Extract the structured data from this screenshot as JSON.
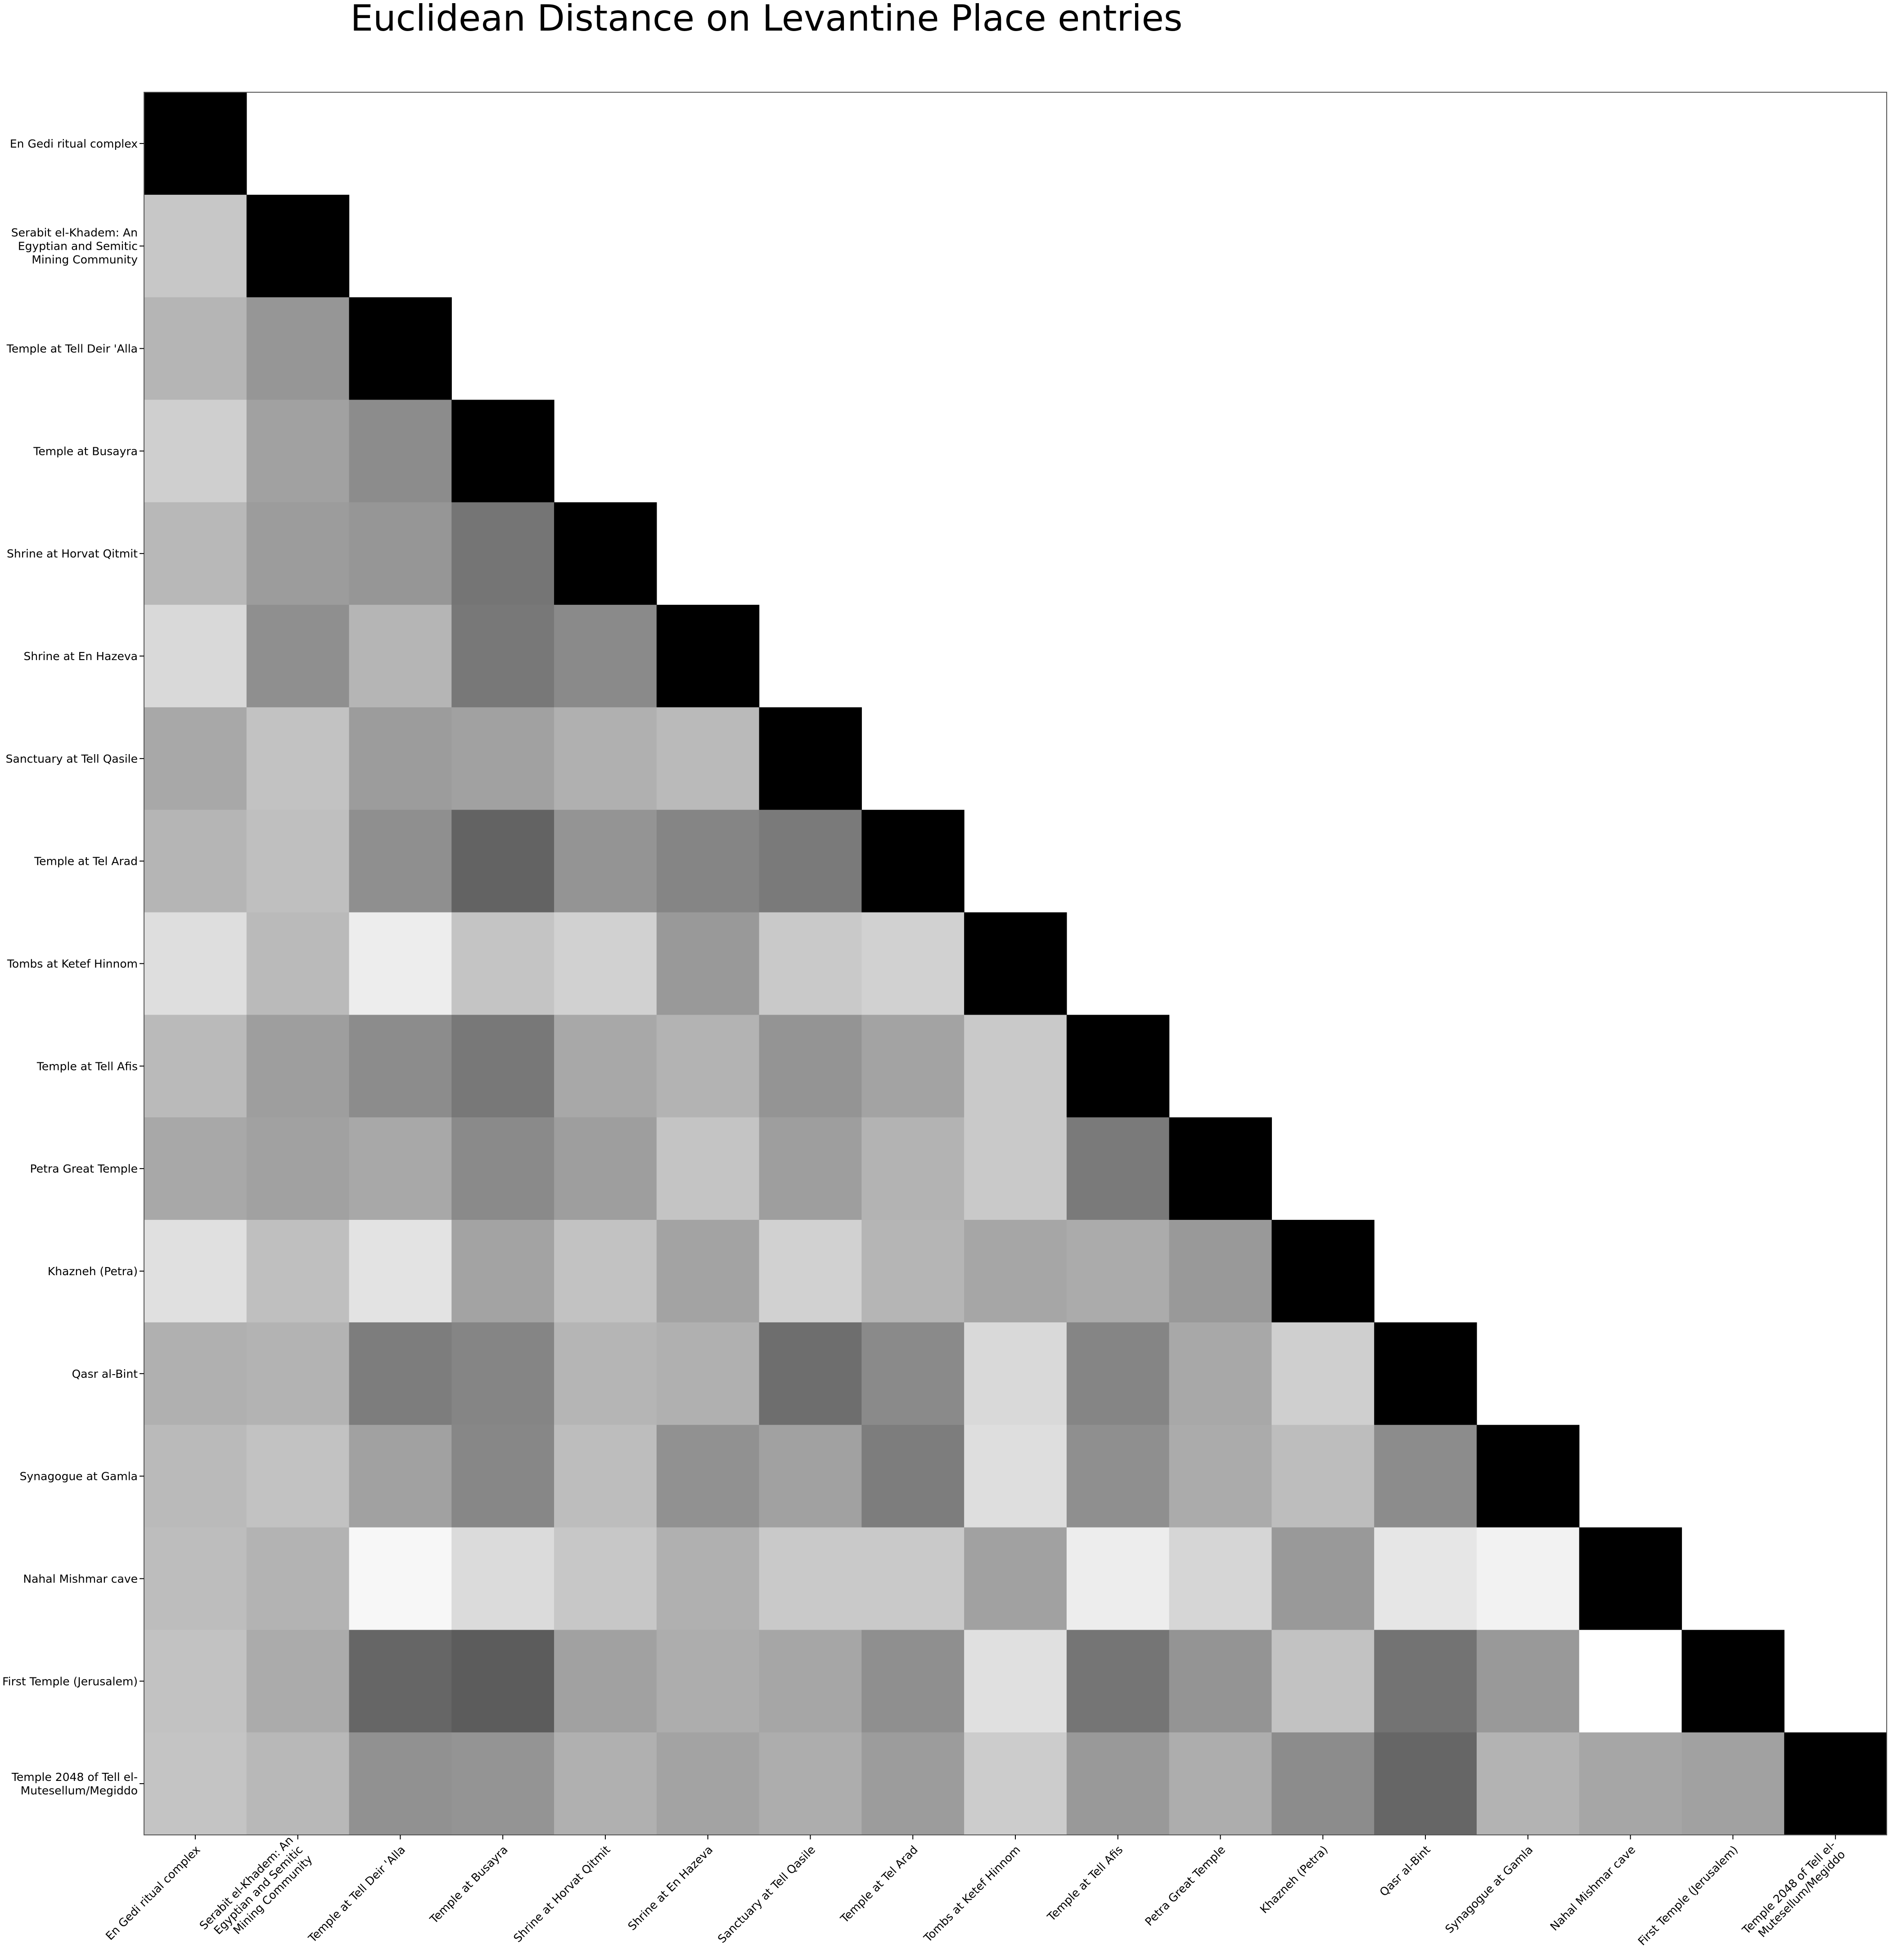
{
  "chart_data": {
    "type": "heatmap",
    "title": "Euclidean Distance on Levantine Place entries",
    "xlabel": "",
    "ylabel": "",
    "colormap": "grayscale (black = 0, white = max)",
    "triangle": "lower",
    "grid": false,
    "labels": [
      [
        "En Gedi ritual complex"
      ],
      [
        "Serabit el-Khadem: An",
        "Egyptian and Semitic",
        "Mining Community"
      ],
      [
        "Temple at Tell Deir 'Alla"
      ],
      [
        "Temple at Busayra"
      ],
      [
        "Shrine at Horvat Qitmit"
      ],
      [
        "Shrine at En Hazeva"
      ],
      [
        "Sanctuary at Tell Qasile"
      ],
      [
        "Temple at Tel Arad"
      ],
      [
        "Tombs at Ketef Hinnom"
      ],
      [
        "Temple at Tell Afis"
      ],
      [
        "Petra Great Temple"
      ],
      [
        "Khazneh (Petra)"
      ],
      [
        "Qasr al-Bint"
      ],
      [
        "Synagogue at Gamla"
      ],
      [
        "Nahal Mishmar cave"
      ],
      [
        "First Temple (Jerusalem)"
      ],
      [
        "Temple 2048 of Tell el-",
        "Mutesellum/Megiddo"
      ]
    ],
    "matrix": [
      [
        0
      ],
      [
        0.78,
        0
      ],
      [
        0.71,
        0.59,
        0
      ],
      [
        0.81,
        0.63,
        0.55,
        0
      ],
      [
        0.72,
        0.61,
        0.59,
        0.46,
        0
      ],
      [
        0.85,
        0.56,
        0.71,
        0.47,
        0.54,
        0
      ],
      [
        0.66,
        0.76,
        0.61,
        0.63,
        0.69,
        0.73,
        0
      ],
      [
        0.71,
        0.75,
        0.56,
        0.39,
        0.58,
        0.52,
        0.48,
        0
      ],
      [
        0.87,
        0.73,
        0.93,
        0.77,
        0.82,
        0.6,
        0.79,
        0.82,
        0
      ],
      [
        0.73,
        0.62,
        0.55,
        0.47,
        0.66,
        0.7,
        0.58,
        0.64,
        0.79,
        0
      ],
      [
        0.66,
        0.63,
        0.66,
        0.54,
        0.62,
        0.77,
        0.62,
        0.7,
        0.79,
        0.48,
        0
      ],
      [
        0.88,
        0.75,
        0.89,
        0.64,
        0.76,
        0.64,
        0.82,
        0.71,
        0.65,
        0.67,
        0.6,
        0
      ],
      [
        0.69,
        0.7,
        0.49,
        0.52,
        0.71,
        0.69,
        0.43,
        0.54,
        0.85,
        0.52,
        0.66,
        0.81,
        0
      ],
      [
        0.73,
        0.76,
        0.63,
        0.53,
        0.74,
        0.57,
        0.63,
        0.49,
        0.87,
        0.56,
        0.67,
        0.74,
        0.55,
        0
      ],
      [
        0.74,
        0.7,
        0.97,
        0.86,
        0.78,
        0.69,
        0.79,
        0.79,
        0.63,
        0.93,
        0.84,
        0.6,
        0.9,
        0.95,
        0
      ],
      [
        0.76,
        0.67,
        0.4,
        0.36,
        0.63,
        0.68,
        0.65,
        0.56,
        0.88,
        0.46,
        0.58,
        0.76,
        0.45,
        0.6,
        1.0,
        0
      ],
      [
        0.77,
        0.72,
        0.57,
        0.58,
        0.69,
        0.64,
        0.68,
        0.61,
        0.8,
        0.6,
        0.68,
        0.55,
        0.4,
        0.7,
        0.65,
        0.63,
        0
      ]
    ]
  }
}
